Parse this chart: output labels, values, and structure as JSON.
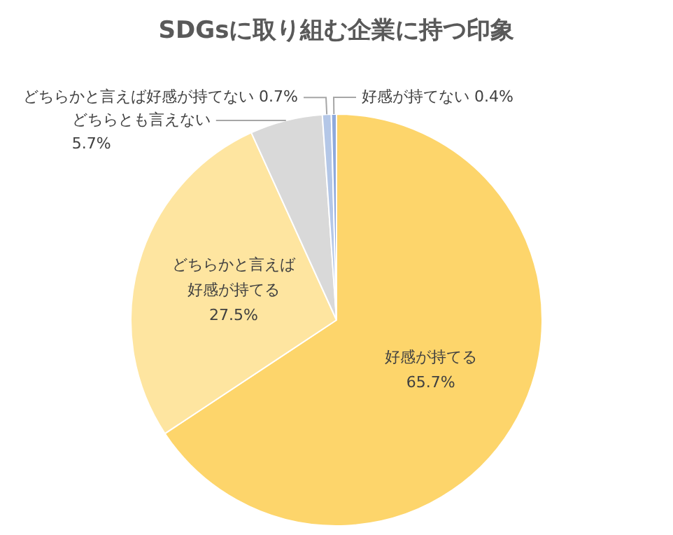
{
  "chart_data": {
    "type": "pie",
    "title": "SDGsに取り組む企業に持つ印象",
    "categories": [
      "好感が持てる",
      "どちらかと言えば好感が持てる",
      "どちらとも言えない",
      "どちらかと言えば好感が持てない",
      "好感が持てない"
    ],
    "values": [
      65.7,
      27.5,
      5.7,
      0.7,
      0.4
    ],
    "value_labels": [
      "65.7%",
      "27.5%",
      "5.7%",
      "0.7%",
      "0.4%"
    ],
    "colors": [
      "#fdd56b",
      "#fee5a0",
      "#d9d9d9",
      "#b4c7e7",
      "#8faadc"
    ],
    "legend": false
  }
}
